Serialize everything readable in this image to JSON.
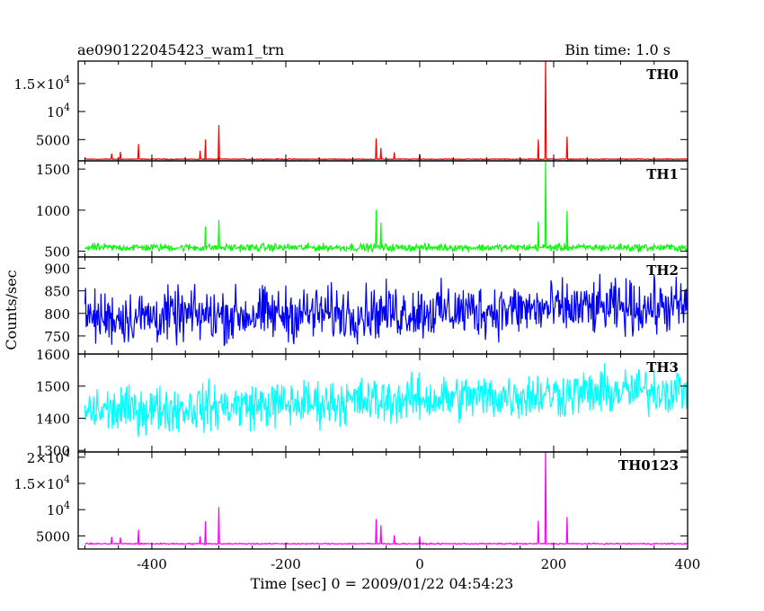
{
  "header": {
    "title": "ae090122045423_wam1_trn",
    "bin_time": "Bin time: 1.0 s"
  },
  "axes": {
    "xlabel": "Time [sec] 0 = 2009/01/22 04:54:23",
    "ylabel": "Counts/sec",
    "x_ticks": [
      "-400",
      "-200",
      "0",
      "200",
      "400"
    ]
  },
  "chart_data": {
    "type": "line",
    "xlim": [
      -510,
      400
    ],
    "x_tick_values": [
      -400,
      -200,
      0,
      200,
      400
    ],
    "panels": [
      {
        "name": "TH0",
        "color": "#ff0000",
        "ylim": [
          1200,
          19000
        ],
        "baseline": 1500,
        "noise": 60,
        "y_ticks": [
          5000,
          10000,
          15000
        ],
        "y_tick_labels": [
          {
            "base": "5000",
            "exp": ""
          },
          {
            "base": "10",
            "exp": "4"
          },
          {
            "base": "1.5×10",
            "exp": "4"
          }
        ],
        "spikes": [
          [
            -460,
            2500
          ],
          [
            -447,
            2800
          ],
          [
            -420,
            4200
          ],
          [
            -328,
            3000
          ],
          [
            -320,
            5000
          ],
          [
            -300,
            7600
          ],
          [
            -65,
            5200
          ],
          [
            -58,
            3500
          ],
          [
            -38,
            2700
          ],
          [
            0,
            2400
          ],
          [
            177,
            5000
          ],
          [
            188,
            20000
          ],
          [
            220,
            5500
          ]
        ]
      },
      {
        "name": "TH1",
        "color": "#00ff00",
        "ylim": [
          430,
          1600
        ],
        "baseline": 545,
        "noise": 35,
        "y_ticks": [
          500,
          1000,
          1500
        ],
        "y_tick_labels": [
          {
            "base": "500",
            "exp": ""
          },
          {
            "base": "1000",
            "exp": ""
          },
          {
            "base": "1500",
            "exp": ""
          }
        ],
        "spikes": [
          [
            -320,
            800
          ],
          [
            -300,
            880
          ],
          [
            -65,
            1000
          ],
          [
            -58,
            850
          ],
          [
            177,
            860
          ],
          [
            188,
            1600
          ],
          [
            220,
            990
          ]
        ]
      },
      {
        "name": "TH2",
        "color": "#0000ff",
        "ylim": [
          710,
          925
        ],
        "baseline": 790,
        "trend": 25,
        "noise": 45,
        "y_ticks": [
          750,
          800,
          850,
          900
        ],
        "y_tick_labels": [
          {
            "base": "750",
            "exp": ""
          },
          {
            "base": "800",
            "exp": ""
          },
          {
            "base": "850",
            "exp": ""
          },
          {
            "base": "900",
            "exp": ""
          }
        ],
        "spikes": []
      },
      {
        "name": "TH3",
        "color": "#00ffff",
        "ylim": [
          1295,
          1600
        ],
        "baseline": 1420,
        "trend": 70,
        "noise": 55,
        "y_ticks": [
          1300,
          1400,
          1500,
          1600
        ],
        "y_tick_labels": [
          {
            "base": "1300",
            "exp": ""
          },
          {
            "base": "1400",
            "exp": ""
          },
          {
            "base": "1500",
            "exp": ""
          },
          {
            "base": "1600",
            "exp": ""
          }
        ],
        "spikes": []
      },
      {
        "name": "TH0123",
        "color": "#ff00ff",
        "ylim": [
          2500,
          21000
        ],
        "baseline": 3500,
        "noise": 90,
        "y_ticks": [
          5000,
          10000,
          15000,
          20000
        ],
        "y_tick_labels": [
          {
            "base": "5000",
            "exp": ""
          },
          {
            "base": "10",
            "exp": "4"
          },
          {
            "base": "1.5×10",
            "exp": "4"
          },
          {
            "base": "2×10",
            "exp": "4"
          }
        ],
        "spikes": [
          [
            -460,
            4800
          ],
          [
            -447,
            4700
          ],
          [
            -420,
            6200
          ],
          [
            -328,
            4900
          ],
          [
            -320,
            7800
          ],
          [
            -300,
            10500
          ],
          [
            -65,
            8200
          ],
          [
            -58,
            7000
          ],
          [
            -38,
            5100
          ],
          [
            0,
            4900
          ],
          [
            177,
            7900
          ],
          [
            188,
            22000
          ],
          [
            220,
            8600
          ]
        ]
      }
    ]
  }
}
